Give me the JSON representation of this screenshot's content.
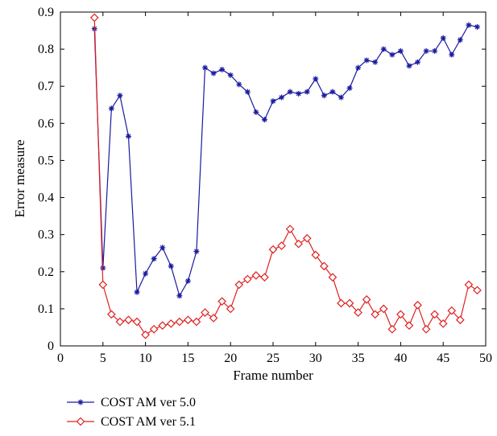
{
  "chart_data": {
    "type": "line",
    "title": "",
    "xlabel": "Frame number",
    "ylabel": "Error measure",
    "xlim": [
      0,
      50
    ],
    "ylim": [
      0,
      0.9
    ],
    "xticks": [
      0,
      5,
      10,
      15,
      20,
      25,
      30,
      35,
      40,
      45,
      50
    ],
    "yticks": [
      0,
      0.1,
      0.2,
      0.3,
      0.4,
      0.5,
      0.6,
      0.7,
      0.8,
      0.9
    ],
    "grid": false,
    "legend_position": "below",
    "series": [
      {
        "name": "COST AM ver 5.0",
        "color": "#1a1aa0",
        "marker": "asterisk",
        "x": [
          4,
          5,
          6,
          7,
          8,
          9,
          10,
          11,
          12,
          13,
          14,
          15,
          16,
          17,
          18,
          19,
          20,
          21,
          22,
          23,
          24,
          25,
          26,
          27,
          28,
          29,
          30,
          31,
          32,
          33,
          34,
          35,
          36,
          37,
          38,
          39,
          40,
          41,
          42,
          43,
          44,
          45,
          46,
          47,
          48,
          49
        ],
        "y": [
          0.855,
          0.21,
          0.64,
          0.675,
          0.565,
          0.145,
          0.195,
          0.235,
          0.265,
          0.215,
          0.135,
          0.175,
          0.255,
          0.75,
          0.735,
          0.745,
          0.73,
          0.705,
          0.685,
          0.63,
          0.61,
          0.66,
          0.67,
          0.685,
          0.68,
          0.685,
          0.72,
          0.675,
          0.685,
          0.67,
          0.695,
          0.75,
          0.77,
          0.765,
          0.8,
          0.785,
          0.795,
          0.755,
          0.765,
          0.795,
          0.795,
          0.83,
          0.785,
          0.825,
          0.865,
          0.86
        ]
      },
      {
        "name": "COST AM ver 5.1",
        "color": "#e02020",
        "marker": "diamond",
        "x": [
          4,
          5,
          6,
          7,
          8,
          9,
          10,
          11,
          12,
          13,
          14,
          15,
          16,
          17,
          18,
          19,
          20,
          21,
          22,
          23,
          24,
          25,
          26,
          27,
          28,
          29,
          30,
          31,
          32,
          33,
          34,
          35,
          36,
          37,
          38,
          39,
          40,
          41,
          42,
          43,
          44,
          45,
          46,
          47,
          48,
          49
        ],
        "y": [
          0.885,
          0.165,
          0.085,
          0.065,
          0.07,
          0.065,
          0.03,
          0.045,
          0.055,
          0.06,
          0.065,
          0.07,
          0.065,
          0.09,
          0.075,
          0.12,
          0.1,
          0.165,
          0.18,
          0.19,
          0.185,
          0.26,
          0.27,
          0.315,
          0.275,
          0.29,
          0.245,
          0.215,
          0.185,
          0.115,
          0.115,
          0.09,
          0.125,
          0.085,
          0.1,
          0.045,
          0.085,
          0.055,
          0.11,
          0.045,
          0.085,
          0.06,
          0.095,
          0.07,
          0.165,
          0.15
        ]
      }
    ]
  }
}
